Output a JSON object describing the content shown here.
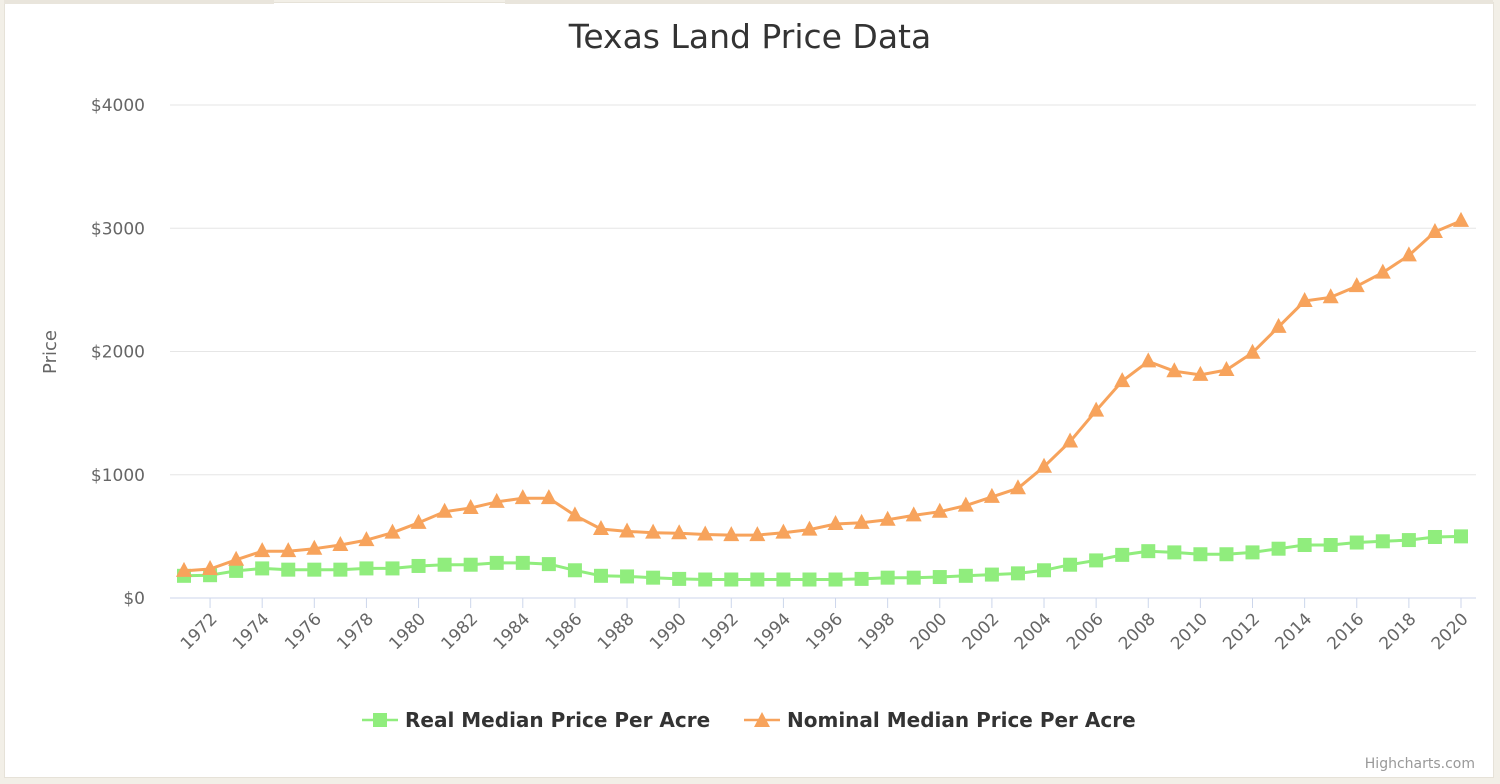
{
  "chart_data": {
    "type": "line",
    "title": "Texas Land Price Data",
    "ylabel": "Price",
    "xlabel": "",
    "ylim": [
      0,
      4000
    ],
    "y_ticks": [
      {
        "value": 0,
        "label": "$0"
      },
      {
        "value": 1000,
        "label": "$1000"
      },
      {
        "value": 2000,
        "label": "$2000"
      },
      {
        "value": 3000,
        "label": "$3000"
      },
      {
        "value": 4000,
        "label": "$4000"
      }
    ],
    "x": [
      1971,
      1972,
      1973,
      1974,
      1975,
      1976,
      1977,
      1978,
      1979,
      1980,
      1981,
      1982,
      1983,
      1984,
      1985,
      1986,
      1987,
      1988,
      1989,
      1990,
      1991,
      1992,
      1993,
      1994,
      1995,
      1996,
      1997,
      1998,
      1999,
      2000,
      2001,
      2002,
      2003,
      2004,
      2005,
      2006,
      2007,
      2008,
      2009,
      2010,
      2011,
      2012,
      2013,
      2014,
      2015,
      2016,
      2017,
      2018,
      2019,
      2020
    ],
    "x_tick_labels": [
      "1972",
      "1974",
      "1976",
      "1978",
      "1980",
      "1982",
      "1984",
      "1986",
      "1988",
      "1990",
      "1992",
      "1994",
      "1996",
      "1998",
      "2000",
      "2002",
      "2004",
      "2006",
      "2008",
      "2010",
      "2012",
      "2014",
      "2016",
      "2018",
      "2020"
    ],
    "series": [
      {
        "name": "Real Median Price Per Acre",
        "color": "#90ed7d",
        "marker": "square",
        "values": [
          180,
          185,
          220,
          240,
          230,
          230,
          230,
          240,
          240,
          260,
          270,
          270,
          285,
          285,
          275,
          225,
          180,
          175,
          165,
          155,
          150,
          150,
          150,
          150,
          150,
          150,
          155,
          165,
          165,
          170,
          180,
          190,
          200,
          225,
          270,
          305,
          350,
          380,
          370,
          355,
          355,
          370,
          400,
          430,
          430,
          450,
          460,
          470,
          495,
          500
        ]
      },
      {
        "name": "Nominal Median Price Per Acre",
        "color": "#f7a35c",
        "marker": "triangle",
        "values": [
          220,
          235,
          310,
          380,
          380,
          400,
          430,
          470,
          530,
          610,
          700,
          730,
          780,
          810,
          810,
          670,
          560,
          540,
          530,
          525,
          515,
          510,
          510,
          530,
          555,
          600,
          610,
          635,
          670,
          700,
          750,
          820,
          890,
          1065,
          1270,
          1520,
          1760,
          1920,
          1840,
          1810,
          1850,
          1990,
          2200,
          2410,
          2440,
          2530,
          2640,
          2780,
          2970,
          3060
        ]
      }
    ],
    "legend_position": "bottom",
    "grid": true
  },
  "credits": "Highcharts.com"
}
